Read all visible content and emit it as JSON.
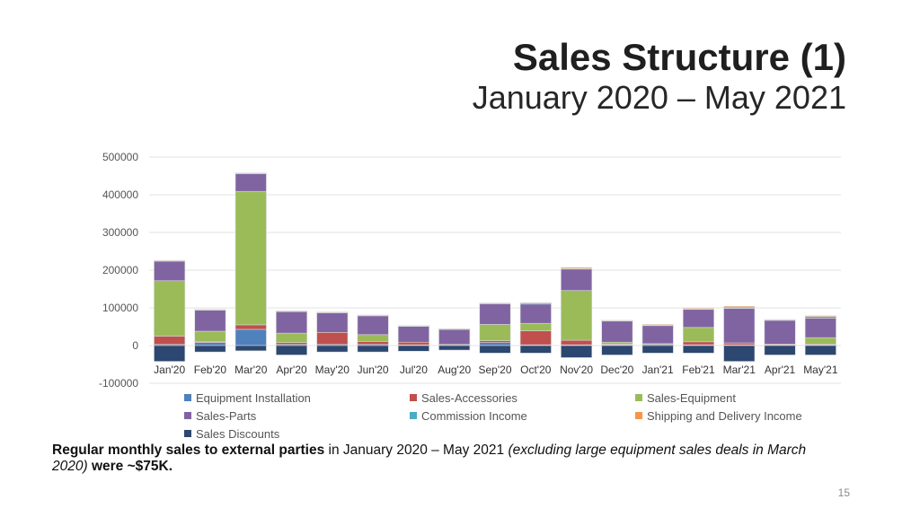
{
  "slide": {
    "title": "Sales Structure (1)",
    "subtitle": "January 2020 – May 2021",
    "note_bold_1": "Regular monthly sales to external parties",
    "note_text_1": " in January 2020 – May 2021 ",
    "note_italic": "(excluding large equipment sales deals in March 2020)",
    "note_text_2": " ",
    "note_bold_2": "were ~$75K.",
    "page_number": "15"
  },
  "colors": {
    "equipment_installation": "#4f81bd",
    "sales_accessories": "#c0504d",
    "sales_equipment": "#9bbb59",
    "sales_parts": "#8064a2",
    "commission_income": "#4bacc6",
    "shipping_delivery": "#f79646",
    "sales_discounts": "#2c4770"
  },
  "chart_data": {
    "type": "bar",
    "stacked": true,
    "categories": [
      "Jan'20",
      "Feb'20",
      "Mar'20",
      "Apr'20",
      "May'20",
      "Jun'20",
      "Jul'20",
      "Aug'20",
      "Sep'20",
      "Oct'20",
      "Nov'20",
      "Dec'20",
      "Jan'21",
      "Feb'21",
      "Mar'21",
      "Apr'21",
      "May'21"
    ],
    "y_ticks": [
      "500000",
      "400000",
      "300000",
      "200000",
      "100000",
      "0",
      "-100000"
    ],
    "ylim": [
      -100000,
      500000
    ],
    "grid": true,
    "legend_position": "bottom",
    "series": [
      {
        "name": "Equipment Installation",
        "color_key": "equipment_installation",
        "values": [
          3000,
          8000,
          43000,
          3000,
          3000,
          3000,
          2000,
          1000,
          8000,
          2000,
          2000,
          2000,
          3000,
          2000,
          2000,
          2000,
          2000
        ]
      },
      {
        "name": "Sales-Accessories",
        "color_key": "sales_accessories",
        "values": [
          22000,
          2000,
          12000,
          5000,
          32000,
          8000,
          7000,
          2000,
          5000,
          37000,
          12000,
          2000,
          2000,
          8000,
          5000,
          2000,
          2000
        ]
      },
      {
        "name": "Sales-Equipment",
        "color_key": "sales_equipment",
        "values": [
          147000,
          28000,
          354000,
          25000,
          0,
          18000,
          0,
          0,
          43000,
          20000,
          132000,
          5000,
          0,
          38000,
          0,
          0,
          17000
        ]
      },
      {
        "name": "Sales-Parts",
        "color_key": "sales_parts",
        "values": [
          52000,
          56000,
          47000,
          57000,
          52000,
          50000,
          42000,
          40000,
          55000,
          51000,
          57000,
          56000,
          48000,
          48000,
          92000,
          63000,
          52000
        ]
      },
      {
        "name": "Commission Income",
        "color_key": "commission_income",
        "values": [
          1000,
          1000,
          1000,
          1000,
          1000,
          1000,
          1000,
          1000,
          1000,
          3000,
          1000,
          1000,
          1000,
          1000,
          1000,
          1000,
          4000
        ]
      },
      {
        "name": "Shipping and Delivery Income",
        "color_key": "shipping_delivery",
        "values": [
          1000,
          1000,
          1000,
          1000,
          1000,
          1000,
          1000,
          1000,
          1000,
          1000,
          3000,
          1000,
          2000,
          2000,
          4000,
          1000,
          2000
        ]
      },
      {
        "name": "Sales Discounts",
        "color_key": "sales_discounts",
        "values": [
          -42000,
          -17000,
          -14000,
          -25000,
          -17000,
          -17000,
          -15000,
          -12000,
          -20000,
          -20000,
          -32000,
          -25000,
          -20000,
          -20000,
          -42000,
          -25000,
          -25000
        ]
      }
    ]
  }
}
